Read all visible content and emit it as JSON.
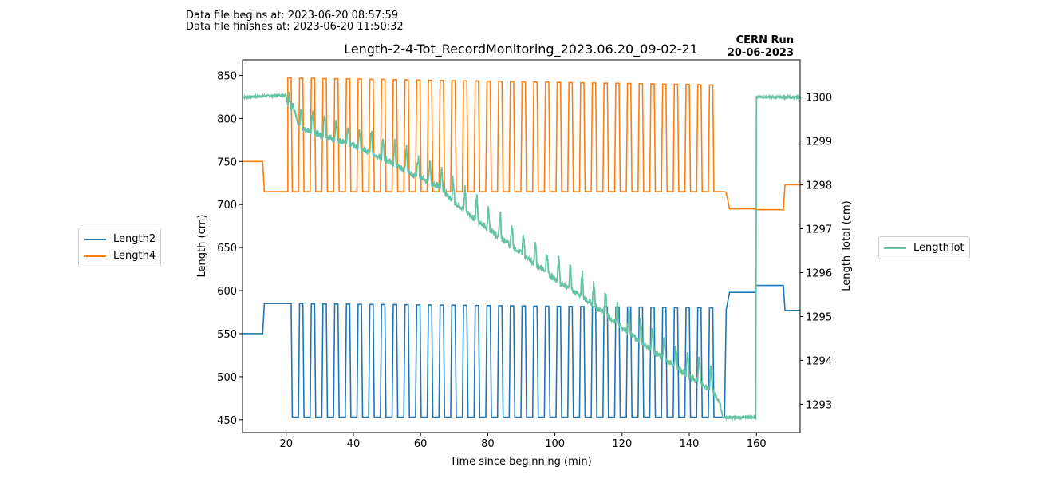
{
  "header": {
    "begin_text": "Data file begins at: 2023-06-20 08:57:59",
    "finish_text": "Data file finishes at: 2023-06-20 11:50:32"
  },
  "chart_data": {
    "type": "line",
    "title": "Length-2-4-Tot_RecordMonitoring_2023.06.20_09-02-21",
    "annotation_line1": "CERN Run",
    "annotation_line2": "20-06-2023",
    "xlabel": "Time since beginning (min)",
    "ylabel_left": "Length (cm)",
    "ylabel_right": "Length Total (cm)",
    "xlim": [
      7,
      173
    ],
    "ylim_left": [
      435,
      868
    ],
    "ylim_right": [
      1292.35,
      1300.85
    ],
    "xticks": [
      20,
      40,
      60,
      80,
      100,
      120,
      140,
      160
    ],
    "yticks_left": [
      450,
      500,
      550,
      600,
      650,
      700,
      750,
      800,
      850
    ],
    "yticks_right": [
      1293,
      1294,
      1295,
      1296,
      1297,
      1298,
      1299,
      1300
    ],
    "grid": false,
    "legend_left_placement": "left outside",
    "legend_right_placement": "right outside",
    "colors": {
      "Length2": "#1f77b4",
      "Length4": "#ff7f0e",
      "LengthTot": "#66c2a5"
    },
    "cycles": {
      "start": 20.5,
      "end": 149.5,
      "count": 37,
      "high_fraction": 0.28,
      "ramp_fraction": 0.1
    },
    "series": [
      {
        "name": "Length2",
        "axis": "left",
        "baseline_x": [
          7,
          13,
          13.5,
          20.5
        ],
        "baseline_y": [
          550,
          550,
          585,
          585
        ],
        "cycle_high_start": 585,
        "cycle_high_end": 580,
        "cycle_low": 453,
        "tail_x": [
          149.5,
          150.5,
          151,
          152,
          159.5,
          160,
          168,
          168.5,
          173
        ],
        "tail_y": [
          453,
          453,
          578,
          598,
          598,
          606,
          606,
          577,
          577
        ]
      },
      {
        "name": "Length4",
        "axis": "left",
        "baseline_x": [
          7,
          13,
          13.5,
          20.5
        ],
        "baseline_y": [
          750,
          750,
          715,
          715
        ],
        "cycle_high_start": 847,
        "cycle_high_end": 839,
        "cycle_low": 715,
        "tail_x": [
          149.5,
          150.5,
          151,
          152,
          159.5,
          160,
          168,
          168.5,
          173
        ],
        "tail_y": [
          715,
          715,
          714,
          695,
          695,
          694,
          694,
          723,
          723
        ]
      },
      {
        "name": "LengthTot",
        "axis": "right",
        "x": [
          7,
          20,
          21,
          22,
          24,
          30,
          40,
          50,
          60,
          66,
          70,
          80,
          90,
          100,
          110,
          120,
          130,
          140,
          147,
          149,
          150,
          159.5,
          159.8,
          160,
          173
        ],
        "y": [
          1300.0,
          1300.05,
          1299.6,
          1299.8,
          1299.3,
          1299.15,
          1298.9,
          1298.55,
          1298.15,
          1297.95,
          1297.6,
          1297.0,
          1296.45,
          1295.85,
          1295.35,
          1294.75,
          1294.15,
          1293.65,
          1293.3,
          1293.05,
          1292.7,
          1292.7,
          1292.68,
          1300.0,
          1300.0
        ]
      }
    ]
  }
}
